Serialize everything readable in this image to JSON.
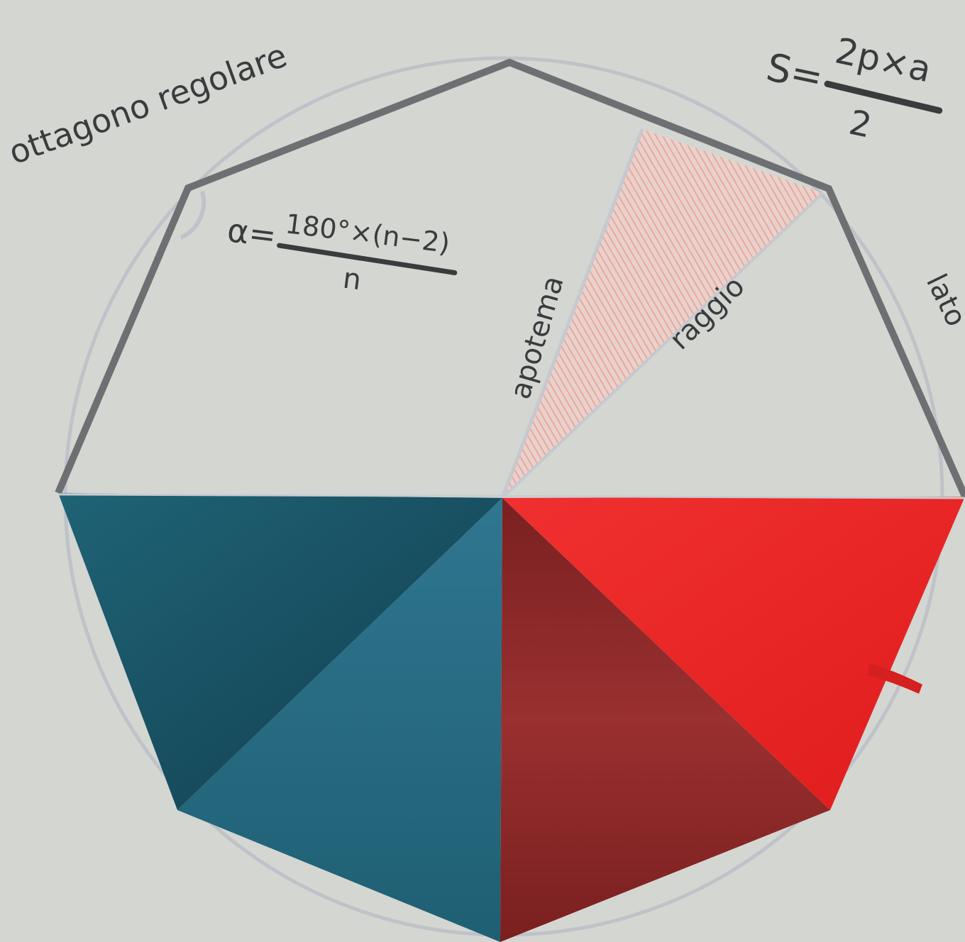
{
  "labels": {
    "title": "ottagono regolare",
    "angle_symbol": "α=",
    "angle_numerator": "180°×(n−2)",
    "angle_denominator": "n",
    "area_lhs": "S=",
    "area_numerator": "2p×a",
    "area_denominator": "2",
    "apothem": "apotema",
    "radius": "raggio",
    "side": "lato"
  },
  "colors": {
    "background": "#d4d6d2",
    "outline": "#6e6f72",
    "circle": "#bfc2c8",
    "hatch": "#e8a8a0",
    "ink": "#3a3b3d",
    "umbrella_blue_dark": "#154a5c",
    "umbrella_blue_light": "#2a6b82",
    "umbrella_red_dark": "#8a2222",
    "umbrella_red_light": "#e82828"
  }
}
